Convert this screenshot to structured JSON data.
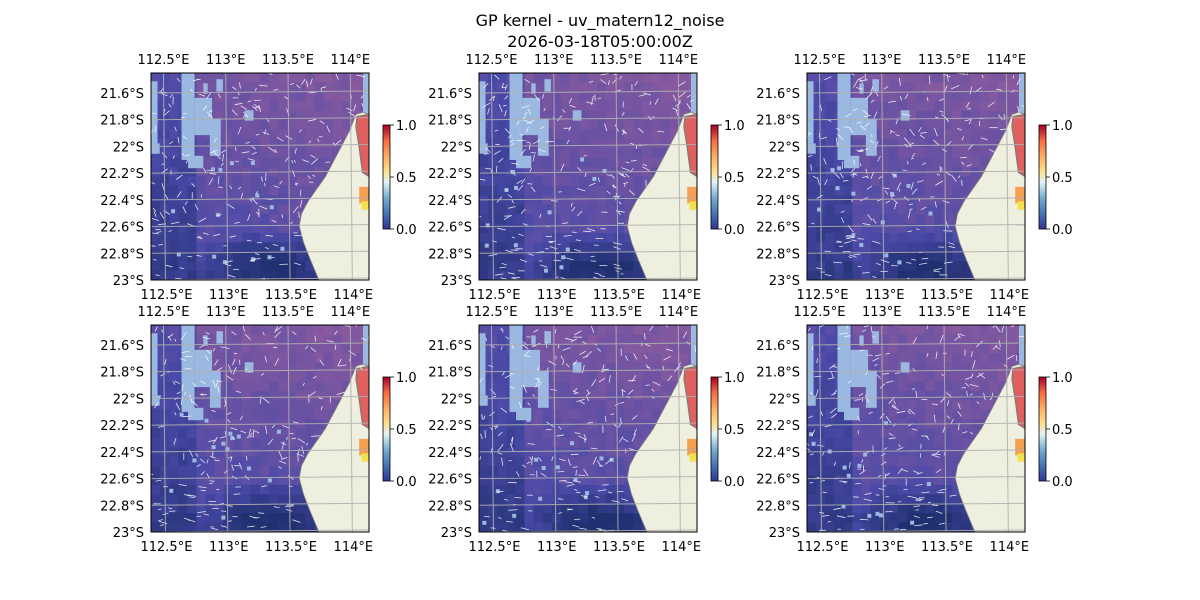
{
  "figure": {
    "title_line1": "GP kernel - uv_matern12_noise",
    "title_line2": "2026-03-18T05:00:00Z"
  },
  "chart_data": {
    "type": "heatmap",
    "panel_count": 6,
    "grid": "on",
    "x_ticks": [
      "112.5°E",
      "113°E",
      "113.5°E",
      "114°E"
    ],
    "x_tick_values": [
      112.5,
      113.0,
      113.5,
      114.0
    ],
    "y_ticks": [
      "21.6°S",
      "21.8°S",
      "22°S",
      "22.2°S",
      "22.4°S",
      "22.6°S",
      "22.8°S",
      "23°S"
    ],
    "y_tick_values": [
      -21.6,
      -21.8,
      -22.0,
      -22.2,
      -22.4,
      -22.6,
      -22.8,
      -23.0
    ],
    "xlim": [
      112.4,
      114.15
    ],
    "ylim": [
      -23.0,
      -21.45
    ],
    "colorbar": {
      "ticks": [
        "0.0",
        "0.5",
        "1.0"
      ],
      "tick_values": [
        0.0,
        0.5,
        1.0
      ],
      "range": [
        0.0,
        1.0
      ],
      "colormap": "RdYlBu_r"
    },
    "colors": {
      "water_low": "#1f2f6f",
      "water_mid": "#4a4aa8",
      "water_high": "#8a5a9e",
      "unresolved_sea": "#9bb8e0",
      "land": "#efefdf",
      "coast_outline": "#7a7a7a",
      "gridline": "#b0b0b0",
      "vectors": "#ffffff"
    }
  }
}
